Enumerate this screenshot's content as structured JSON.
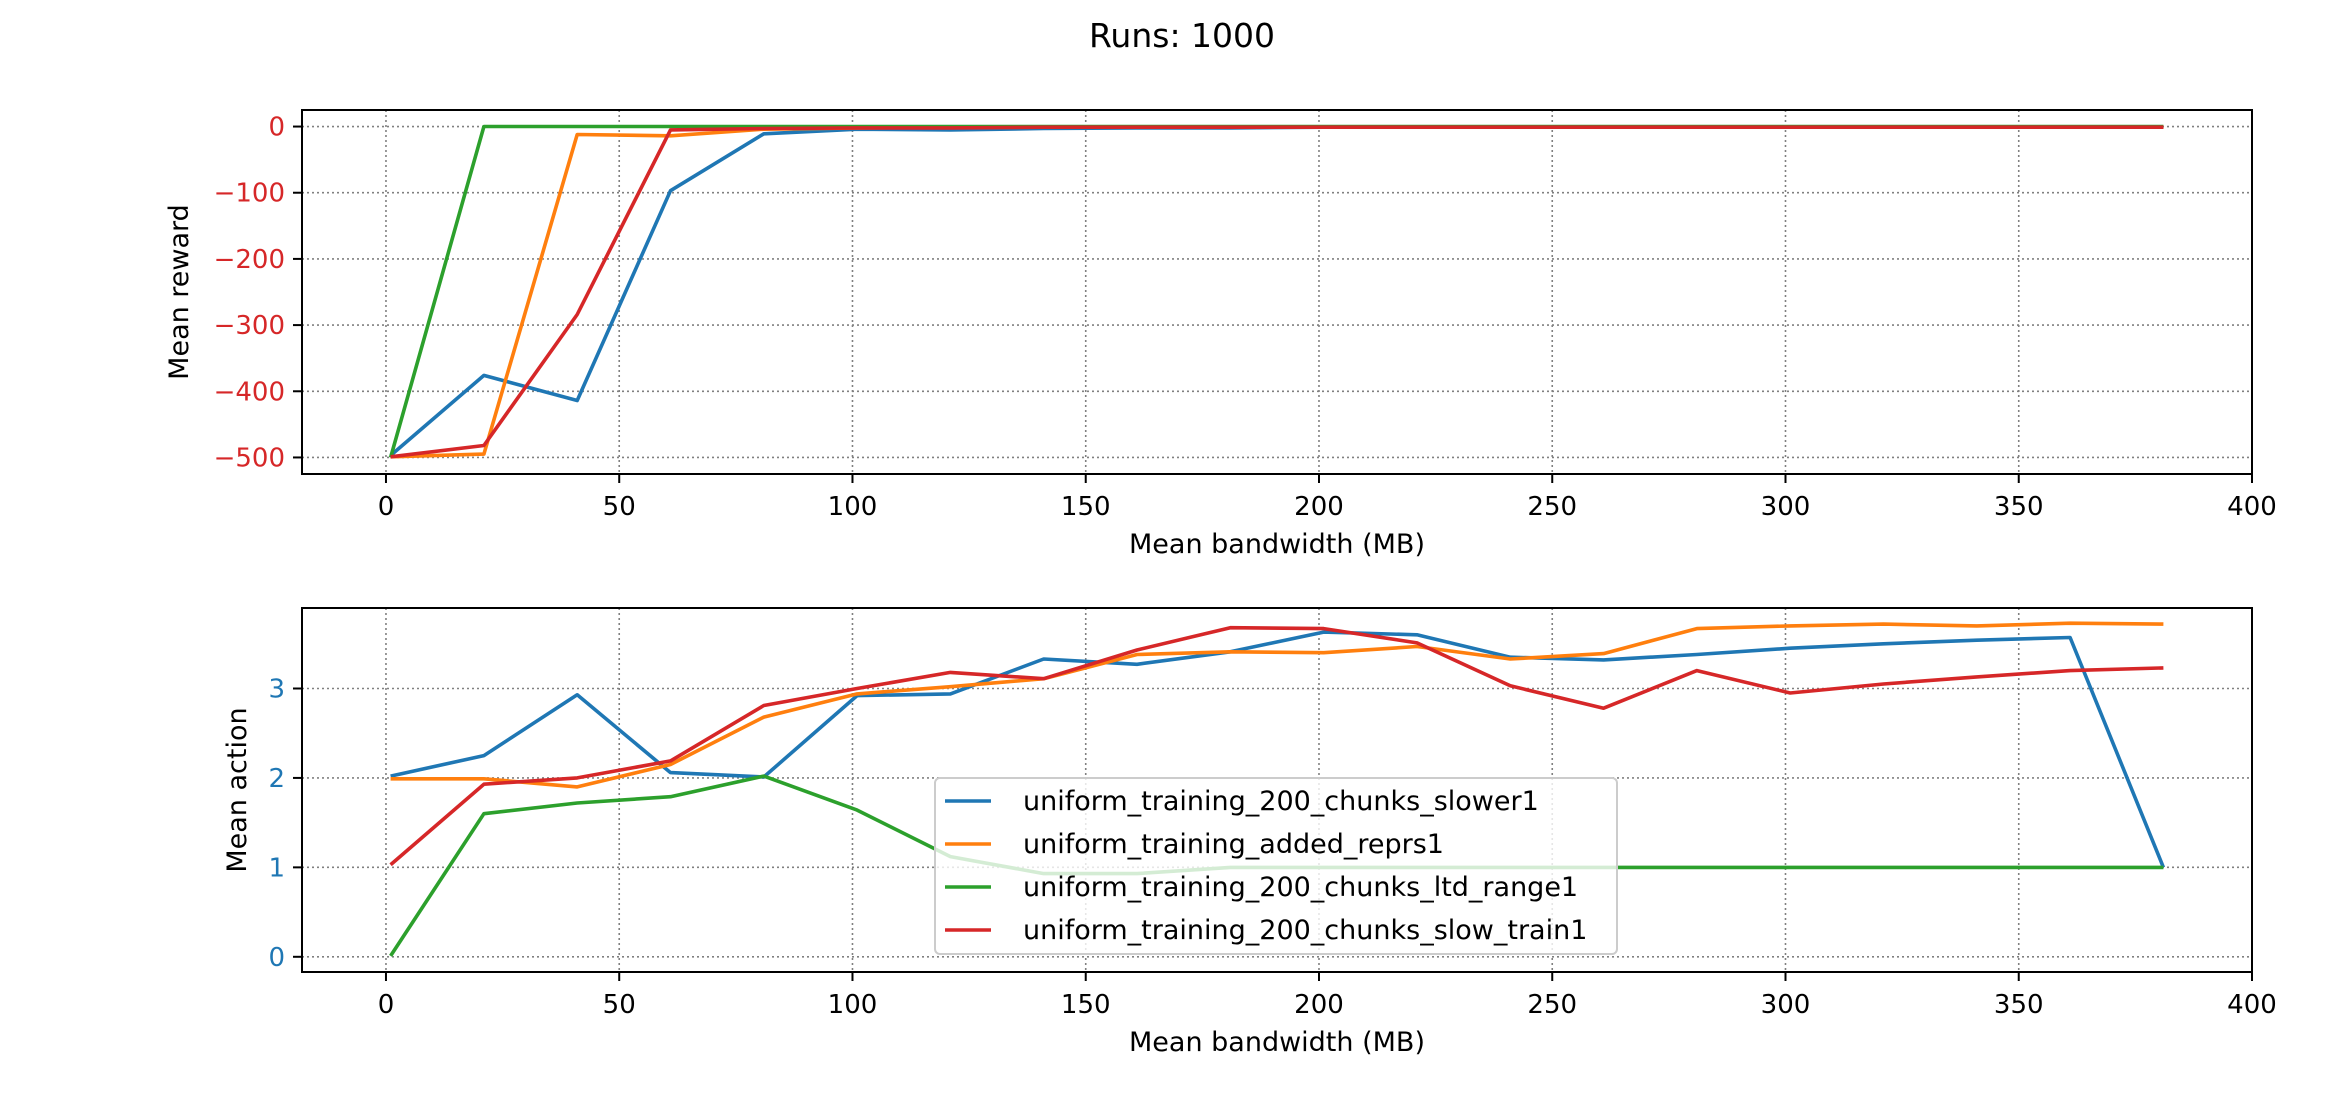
{
  "figure": {
    "suptitle": "Runs: 1000"
  },
  "series_colors": {
    "uniform_training_200_chunks_slower1": "#1f77b4",
    "uniform_training_added_reprs1": "#ff7f0e",
    "uniform_training_200_chunks_ltd_range1": "#2ca02c",
    "uniform_training_200_chunks_slow_train1": "#d62728"
  },
  "chart_data": [
    {
      "type": "line",
      "xlabel": "Mean bandwidth (MB)",
      "ylabel": "Mean reward",
      "ylabel_color": "#d62728",
      "ytick_color": "#d62728",
      "xlim": [
        -18,
        400
      ],
      "ylim": [
        -525,
        25
      ],
      "xticks": [
        0,
        50,
        100,
        150,
        200,
        250,
        300,
        350,
        400
      ],
      "yticks": [
        0,
        -100,
        -200,
        -300,
        -400,
        -500
      ],
      "ytick_labels": [
        "0",
        "−100",
        "−200",
        "−300",
        "−400",
        "−500"
      ],
      "grid": true,
      "series": [
        {
          "key": "uniform_training_200_chunks_slower1",
          "x": [
            1,
            21,
            41,
            61,
            81,
            101,
            121,
            141,
            161,
            181,
            201,
            221,
            241,
            261,
            281,
            301,
            321,
            341,
            361,
            381
          ],
          "y": [
            -497,
            -376,
            -414,
            -97,
            -11,
            -4,
            -5,
            -3,
            -2,
            -2,
            -1,
            -1,
            -1,
            -1,
            -1,
            -1,
            -1,
            -1,
            -1,
            -1
          ]
        },
        {
          "key": "uniform_training_added_reprs1",
          "x": [
            1,
            21,
            41,
            61,
            81,
            101,
            121,
            141,
            161,
            181,
            201,
            221,
            241,
            261,
            281,
            301,
            321,
            341,
            361,
            381
          ],
          "y": [
            -499,
            -495,
            -12,
            -14,
            -4,
            -2,
            -1,
            -1,
            -1,
            -1,
            -1,
            -1,
            -1,
            -1,
            -1,
            -1,
            -1,
            -1,
            -1,
            -1
          ]
        },
        {
          "key": "uniform_training_200_chunks_ltd_range1",
          "x": [
            1,
            21,
            41,
            61,
            81,
            101,
            121,
            141,
            161,
            181,
            201,
            221,
            241,
            261,
            281,
            301,
            321,
            341,
            361,
            381
          ],
          "y": [
            -500,
            0,
            0,
            0,
            0,
            0,
            0,
            0,
            0,
            0,
            0,
            0,
            0,
            0,
            0,
            0,
            0,
            0,
            0,
            0
          ]
        },
        {
          "key": "uniform_training_200_chunks_slow_train1",
          "x": [
            1,
            21,
            41,
            61,
            81,
            101,
            121,
            141,
            161,
            181,
            201,
            221,
            241,
            261,
            281,
            301,
            321,
            341,
            361,
            381
          ],
          "y": [
            -499,
            -482,
            -284,
            -5,
            -3,
            -2,
            -2,
            -1,
            -1,
            -1,
            -1,
            -1,
            -1,
            -1,
            -1,
            -1,
            -1,
            -1,
            -1,
            -1
          ]
        }
      ]
    },
    {
      "type": "line",
      "xlabel": "Mean bandwidth (MB)",
      "ylabel": "Mean action",
      "ylabel_color": "#000000",
      "ytick_color": "#1f77b4",
      "xlim": [
        -18,
        400
      ],
      "ylim": [
        -0.17,
        3.9
      ],
      "xticks": [
        0,
        50,
        100,
        150,
        200,
        250,
        300,
        350,
        400
      ],
      "yticks": [
        0,
        1,
        2,
        3
      ],
      "ytick_labels": [
        "0",
        "1",
        "2",
        "3"
      ],
      "grid": true,
      "legend_position": "lower-center",
      "legend": [
        "uniform_training_200_chunks_slower1",
        "uniform_training_added_reprs1",
        "uniform_training_200_chunks_ltd_range1",
        "uniform_training_200_chunks_slow_train1"
      ],
      "series": [
        {
          "key": "uniform_training_200_chunks_slower1",
          "x": [
            1,
            21,
            41,
            61,
            81,
            101,
            121,
            141,
            161,
            181,
            201,
            221,
            241,
            261,
            281,
            301,
            321,
            341,
            361,
            381
          ],
          "y": [
            2.02,
            2.25,
            2.93,
            2.06,
            2.01,
            2.92,
            2.94,
            3.33,
            3.27,
            3.41,
            3.63,
            3.6,
            3.35,
            3.32,
            3.38,
            3.45,
            3.5,
            3.54,
            3.57,
            1.0
          ]
        },
        {
          "key": "uniform_training_added_reprs1",
          "x": [
            1,
            21,
            41,
            61,
            81,
            101,
            121,
            141,
            161,
            181,
            201,
            221,
            241,
            261,
            281,
            301,
            321,
            341,
            361,
            381
          ],
          "y": [
            1.99,
            1.99,
            1.9,
            2.15,
            2.68,
            2.94,
            3.02,
            3.11,
            3.38,
            3.41,
            3.4,
            3.47,
            3.33,
            3.39,
            3.67,
            3.7,
            3.72,
            3.7,
            3.73,
            3.72
          ]
        },
        {
          "key": "uniform_training_200_chunks_ltd_range1",
          "x": [
            1,
            21,
            41,
            61,
            81,
            101,
            121,
            141,
            161,
            181,
            201,
            221,
            241,
            261,
            281,
            301,
            321,
            341,
            361,
            381
          ],
          "y": [
            0.01,
            1.6,
            1.72,
            1.79,
            2.02,
            1.64,
            1.12,
            0.93,
            0.93,
            1.0,
            1.0,
            1.0,
            1.0,
            1.0,
            1.0,
            1.0,
            1.0,
            1.0,
            1.0,
            1.0
          ]
        },
        {
          "key": "uniform_training_200_chunks_slow_train1",
          "x": [
            1,
            21,
            41,
            61,
            81,
            101,
            121,
            141,
            161,
            181,
            201,
            221,
            241,
            261,
            281,
            301,
            321,
            341,
            361,
            381
          ],
          "y": [
            1.03,
            1.93,
            2.0,
            2.19,
            2.81,
            3.0,
            3.18,
            3.11,
            3.43,
            3.68,
            3.67,
            3.51,
            3.03,
            2.78,
            3.2,
            2.95,
            3.05,
            3.13,
            3.2,
            3.23
          ]
        }
      ]
    }
  ]
}
